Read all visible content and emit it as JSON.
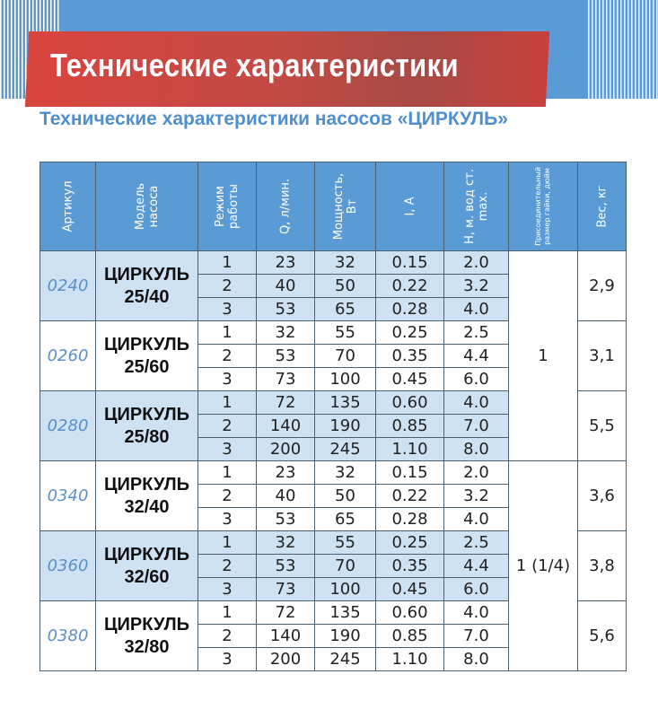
{
  "header": {
    "title": "Технические  характеристики"
  },
  "subtitle": "Технические характеристики насосов «ЦИРКУЛЬ»",
  "colors": {
    "band": "#5b9bd5",
    "banner": "#c8403d",
    "row_highlight": "#cfe2f3",
    "article_text": "#5b8fc9"
  },
  "table": {
    "columns": [
      "Артикул",
      "Модель насоса",
      "Режим работы",
      "Q, л/мин.",
      "Мощность, Вт",
      "I, А",
      "H, м. вод ст. max.",
      "Присоединительный размер гайки, дюйм",
      "Вес, кг"
    ],
    "connection_groups": [
      {
        "value": "1",
        "rows": 9
      },
      {
        "value": "1 (1/4)",
        "rows": 9
      }
    ],
    "products": [
      {
        "article": "0240",
        "model_line1": "ЦИРКУЛЬ",
        "model_line2": "25/40",
        "weight": "2,9",
        "modes": [
          [
            "1",
            "23",
            "32",
            "0.15",
            "2.0"
          ],
          [
            "2",
            "40",
            "50",
            "0.22",
            "3.2"
          ],
          [
            "3",
            "53",
            "65",
            "0.28",
            "4.0"
          ]
        ]
      },
      {
        "article": "0260",
        "model_line1": "ЦИРКУЛЬ",
        "model_line2": "25/60",
        "weight": "3,1",
        "modes": [
          [
            "1",
            "32",
            "55",
            "0.25",
            "2.5"
          ],
          [
            "2",
            "53",
            "70",
            "0.35",
            "4.4"
          ],
          [
            "3",
            "73",
            "100",
            "0.45",
            "6.0"
          ]
        ]
      },
      {
        "article": "0280",
        "model_line1": "ЦИРКУЛЬ",
        "model_line2": "25/80",
        "weight": "5,5",
        "modes": [
          [
            "1",
            "72",
            "135",
            "0.60",
            "4.0"
          ],
          [
            "2",
            "140",
            "190",
            "0.85",
            "7.0"
          ],
          [
            "3",
            "200",
            "245",
            "1.10",
            "8.0"
          ]
        ]
      },
      {
        "article": "0340",
        "model_line1": "ЦИРКУЛЬ",
        "model_line2": "32/40",
        "weight": "3,6",
        "modes": [
          [
            "1",
            "23",
            "32",
            "0.15",
            "2.0"
          ],
          [
            "2",
            "40",
            "50",
            "0.22",
            "3.2"
          ],
          [
            "3",
            "53",
            "65",
            "0.28",
            "4.0"
          ]
        ]
      },
      {
        "article": "0360",
        "model_line1": "ЦИРКУЛЬ",
        "model_line2": "32/60",
        "weight": "3,8",
        "modes": [
          [
            "1",
            "32",
            "55",
            "0.25",
            "2.5"
          ],
          [
            "2",
            "53",
            "70",
            "0.35",
            "4.4"
          ],
          [
            "3",
            "73",
            "100",
            "0.45",
            "6.0"
          ]
        ]
      },
      {
        "article": "0380",
        "model_line1": "ЦИРКУЛЬ",
        "model_line2": "32/80",
        "weight": "5,6",
        "modes": [
          [
            "1",
            "72",
            "135",
            "0.60",
            "4.0"
          ],
          [
            "2",
            "140",
            "190",
            "0.85",
            "7.0"
          ],
          [
            "3",
            "200",
            "245",
            "1.10",
            "8.0"
          ]
        ]
      }
    ]
  }
}
